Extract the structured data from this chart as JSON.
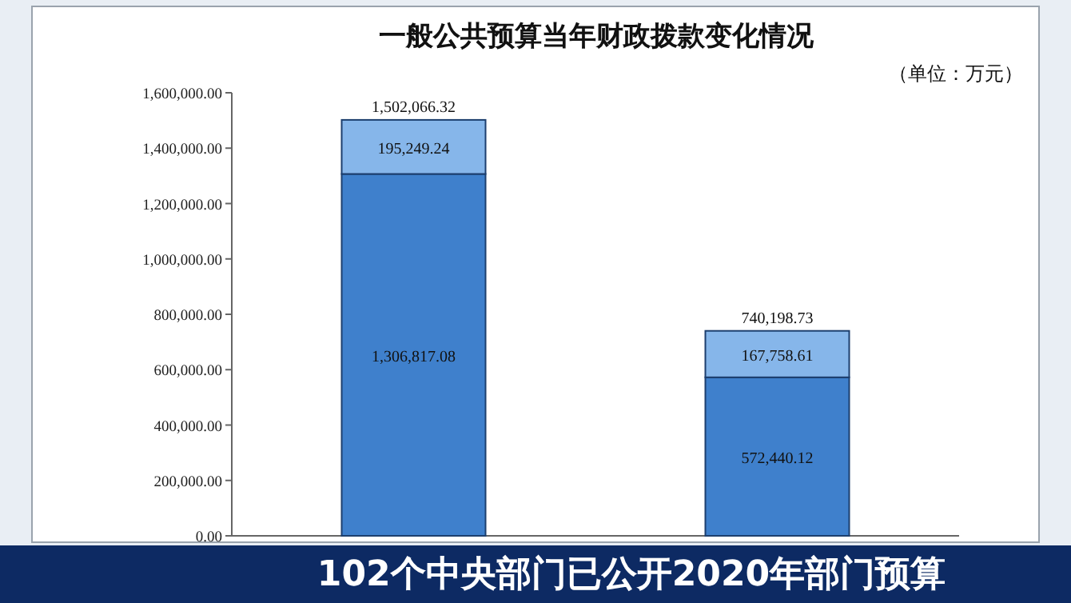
{
  "chart_data": {
    "type": "bar",
    "title": "一般公共预算当年财政拨款变化情况",
    "subtitle": "（单位：万元）",
    "categories": [
      null,
      null
    ],
    "stacked": true,
    "series": [
      {
        "color": "#3f80cc",
        "values": [
          1306817.08,
          572440.12
        ],
        "value_labels": [
          "1,306,817.08",
          "572,440.12"
        ]
      },
      {
        "color": "#86b6ea",
        "values": [
          195249.24,
          167758.61
        ],
        "value_labels": [
          "195,249.24",
          "167,758.61"
        ]
      }
    ],
    "totals": [
      "1,502,066.32",
      "740,198.73"
    ],
    "ylim": [
      0,
      1600000
    ],
    "yticks": [
      {
        "value": 0,
        "label": "0.00"
      },
      {
        "value": 200000,
        "label": "200,000.00"
      },
      {
        "value": 400000,
        "label": "400,000.00"
      },
      {
        "value": 600000,
        "label": "600,000.00"
      },
      {
        "value": 800000,
        "label": "800,000.00"
      },
      {
        "value": 1000000,
        "label": "1,000,000.00"
      },
      {
        "value": 1200000,
        "label": "1,200,000.00"
      },
      {
        "value": 1400000,
        "label": "1,400,000.00"
      },
      {
        "value": 1600000,
        "label": "1,600,000.00"
      }
    ],
    "annotations": [
      "102个中央部门已公开2020年部门预算"
    ]
  }
}
